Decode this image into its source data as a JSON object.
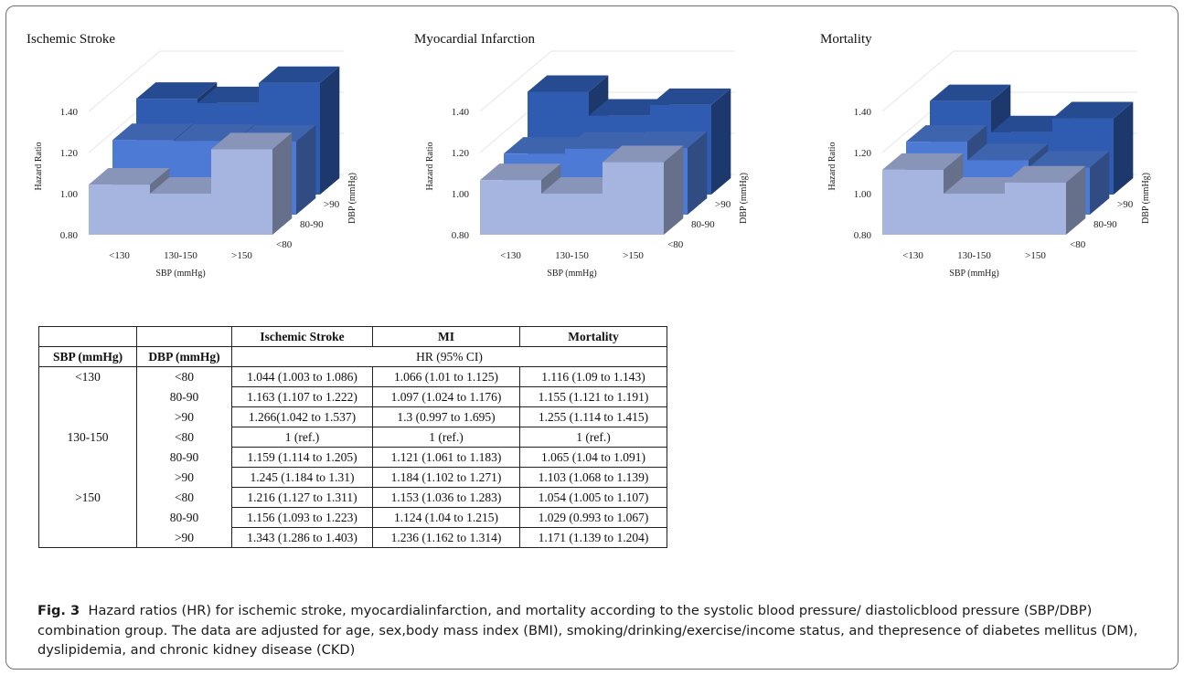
{
  "figure": {
    "label": "Fig. 3",
    "caption": "Hazard ratios (HR) for ischemic stroke, myocardialinfarction, and mortality according to the systolic blood pressure/ diastolicblood pressure (SBP/DBP) combination group. The data are adjusted for age, sex,body mass index (BMI), smoking/drinking/exercise/income status, and thepresence of diabetes mellitus (DM), dyslipidemia, and chronic kidney disease (CKD)"
  },
  "chart_data": [
    {
      "type": "bar",
      "title": "Ischemic Stroke",
      "xlabel": "SBP (mmHg)",
      "ylabel": "Hazard Ratio",
      "zlabel": "DBP (mmHg)",
      "categories": [
        "<130",
        "130-150",
        ">150"
      ],
      "series_labels": [
        "<80",
        "80-90",
        ">90"
      ],
      "yticks": [
        "0.80",
        "1.00",
        "1.20",
        "1.40"
      ],
      "ylim": [
        0.8,
        1.4
      ],
      "series": [
        {
          "name": "<80",
          "values": [
            1.044,
            1.0,
            1.216
          ]
        },
        {
          "name": "80-90",
          "values": [
            1.163,
            1.159,
            1.156
          ]
        },
        {
          "name": ">90",
          "values": [
            1.266,
            1.245,
            1.343
          ]
        }
      ]
    },
    {
      "type": "bar",
      "title": "Myocardial Infarction",
      "xlabel": "SBP (mmHg)",
      "ylabel": "Hazard Ratio",
      "zlabel": "DBP (mmHg)",
      "categories": [
        "<130",
        "130-150",
        ">150"
      ],
      "series_labels": [
        "<80",
        "80-90",
        ">90"
      ],
      "yticks": [
        "0.80",
        "1.00",
        "1.20",
        "1.40"
      ],
      "ylim": [
        0.8,
        1.4
      ],
      "series": [
        {
          "name": "<80",
          "values": [
            1.066,
            1.0,
            1.153
          ]
        },
        {
          "name": "80-90",
          "values": [
            1.097,
            1.121,
            1.124
          ]
        },
        {
          "name": ">90",
          "values": [
            1.3,
            1.184,
            1.236
          ]
        }
      ]
    },
    {
      "type": "bar",
      "title": "Mortality",
      "xlabel": "SBP (mmHg)",
      "ylabel": "Hazard Ratio",
      "zlabel": "DBP (mmHg)",
      "categories": [
        "<130",
        "130-150",
        ">150"
      ],
      "series_labels": [
        "<80",
        "80-90",
        ">90"
      ],
      "yticks": [
        "0.80",
        "1.00",
        "1.20",
        "1.40"
      ],
      "ylim": [
        0.8,
        1.4
      ],
      "series": [
        {
          "name": "<80",
          "values": [
            1.116,
            1.0,
            1.054
          ]
        },
        {
          "name": "80-90",
          "values": [
            1.155,
            1.065,
            1.029
          ]
        },
        {
          "name": ">90",
          "values": [
            1.255,
            1.103,
            1.171
          ]
        }
      ]
    }
  ],
  "table": {
    "headers": [
      "Ischemic Stroke",
      "MI",
      "Mortality"
    ],
    "col_sbp": "SBP (mmHg)",
    "col_dbp": "DBP (mmHg)",
    "subheader": "HR (95% CI)",
    "rows": [
      {
        "sbp": "<130",
        "dbp": "<80",
        "stroke": "1.044 (1.003 to 1.086)",
        "mi": "1.066 (1.01 to 1.125)",
        "mortality": "1.116 (1.09 to 1.143)"
      },
      {
        "sbp": "",
        "dbp": "80-90",
        "stroke": "1.163 (1.107 to 1.222)",
        "mi": "1.097 (1.024 to 1.176)",
        "mortality": "1.155 (1.121 to 1.191)"
      },
      {
        "sbp": "",
        "dbp": ">90",
        "stroke": "1.266(1.042 to 1.537)",
        "mi": "1.3 (0.997 to 1.695)",
        "mortality": "1.255 (1.114 to 1.415)"
      },
      {
        "sbp": "130-150",
        "dbp": "<80",
        "stroke": "1 (ref.)",
        "mi": "1 (ref.)",
        "mortality": "1 (ref.)"
      },
      {
        "sbp": "",
        "dbp": "80-90",
        "stroke": "1.159 (1.114 to 1.205)",
        "mi": "1.121 (1.061 to 1.183)",
        "mortality": "1.065 (1.04 to 1.091)"
      },
      {
        "sbp": "",
        "dbp": ">90",
        "stroke": "1.245 (1.184 to 1.31)",
        "mi": "1.184 (1.102 to 1.271)",
        "mortality": "1.103 (1.068 to 1.139)"
      },
      {
        "sbp": ">150",
        "dbp": "<80",
        "stroke": "1.216 (1.127 to 1.311)",
        "mi": "1.153 (1.036 to 1.283)",
        "mortality": "1.054 (1.005 to 1.107)"
      },
      {
        "sbp": "",
        "dbp": "80-90",
        "stroke": "1.156 (1.093 to 1.223)",
        "mi": "1.124 (1.04 to 1.215)",
        "mortality": "1.029 (0.993 to 1.067)"
      },
      {
        "sbp": "",
        "dbp": ">90",
        "stroke": "1.343 (1.286 to 1.403)",
        "mi": "1.236 (1.162 to 1.314)",
        "mortality": "1.171 (1.139 to 1.204)"
      }
    ]
  },
  "colors": {
    "series_front": "#a6b4e0",
    "series_mid": "#4d7ad4",
    "series_back": "#2f5bb0",
    "border": "#6d6d6d"
  }
}
